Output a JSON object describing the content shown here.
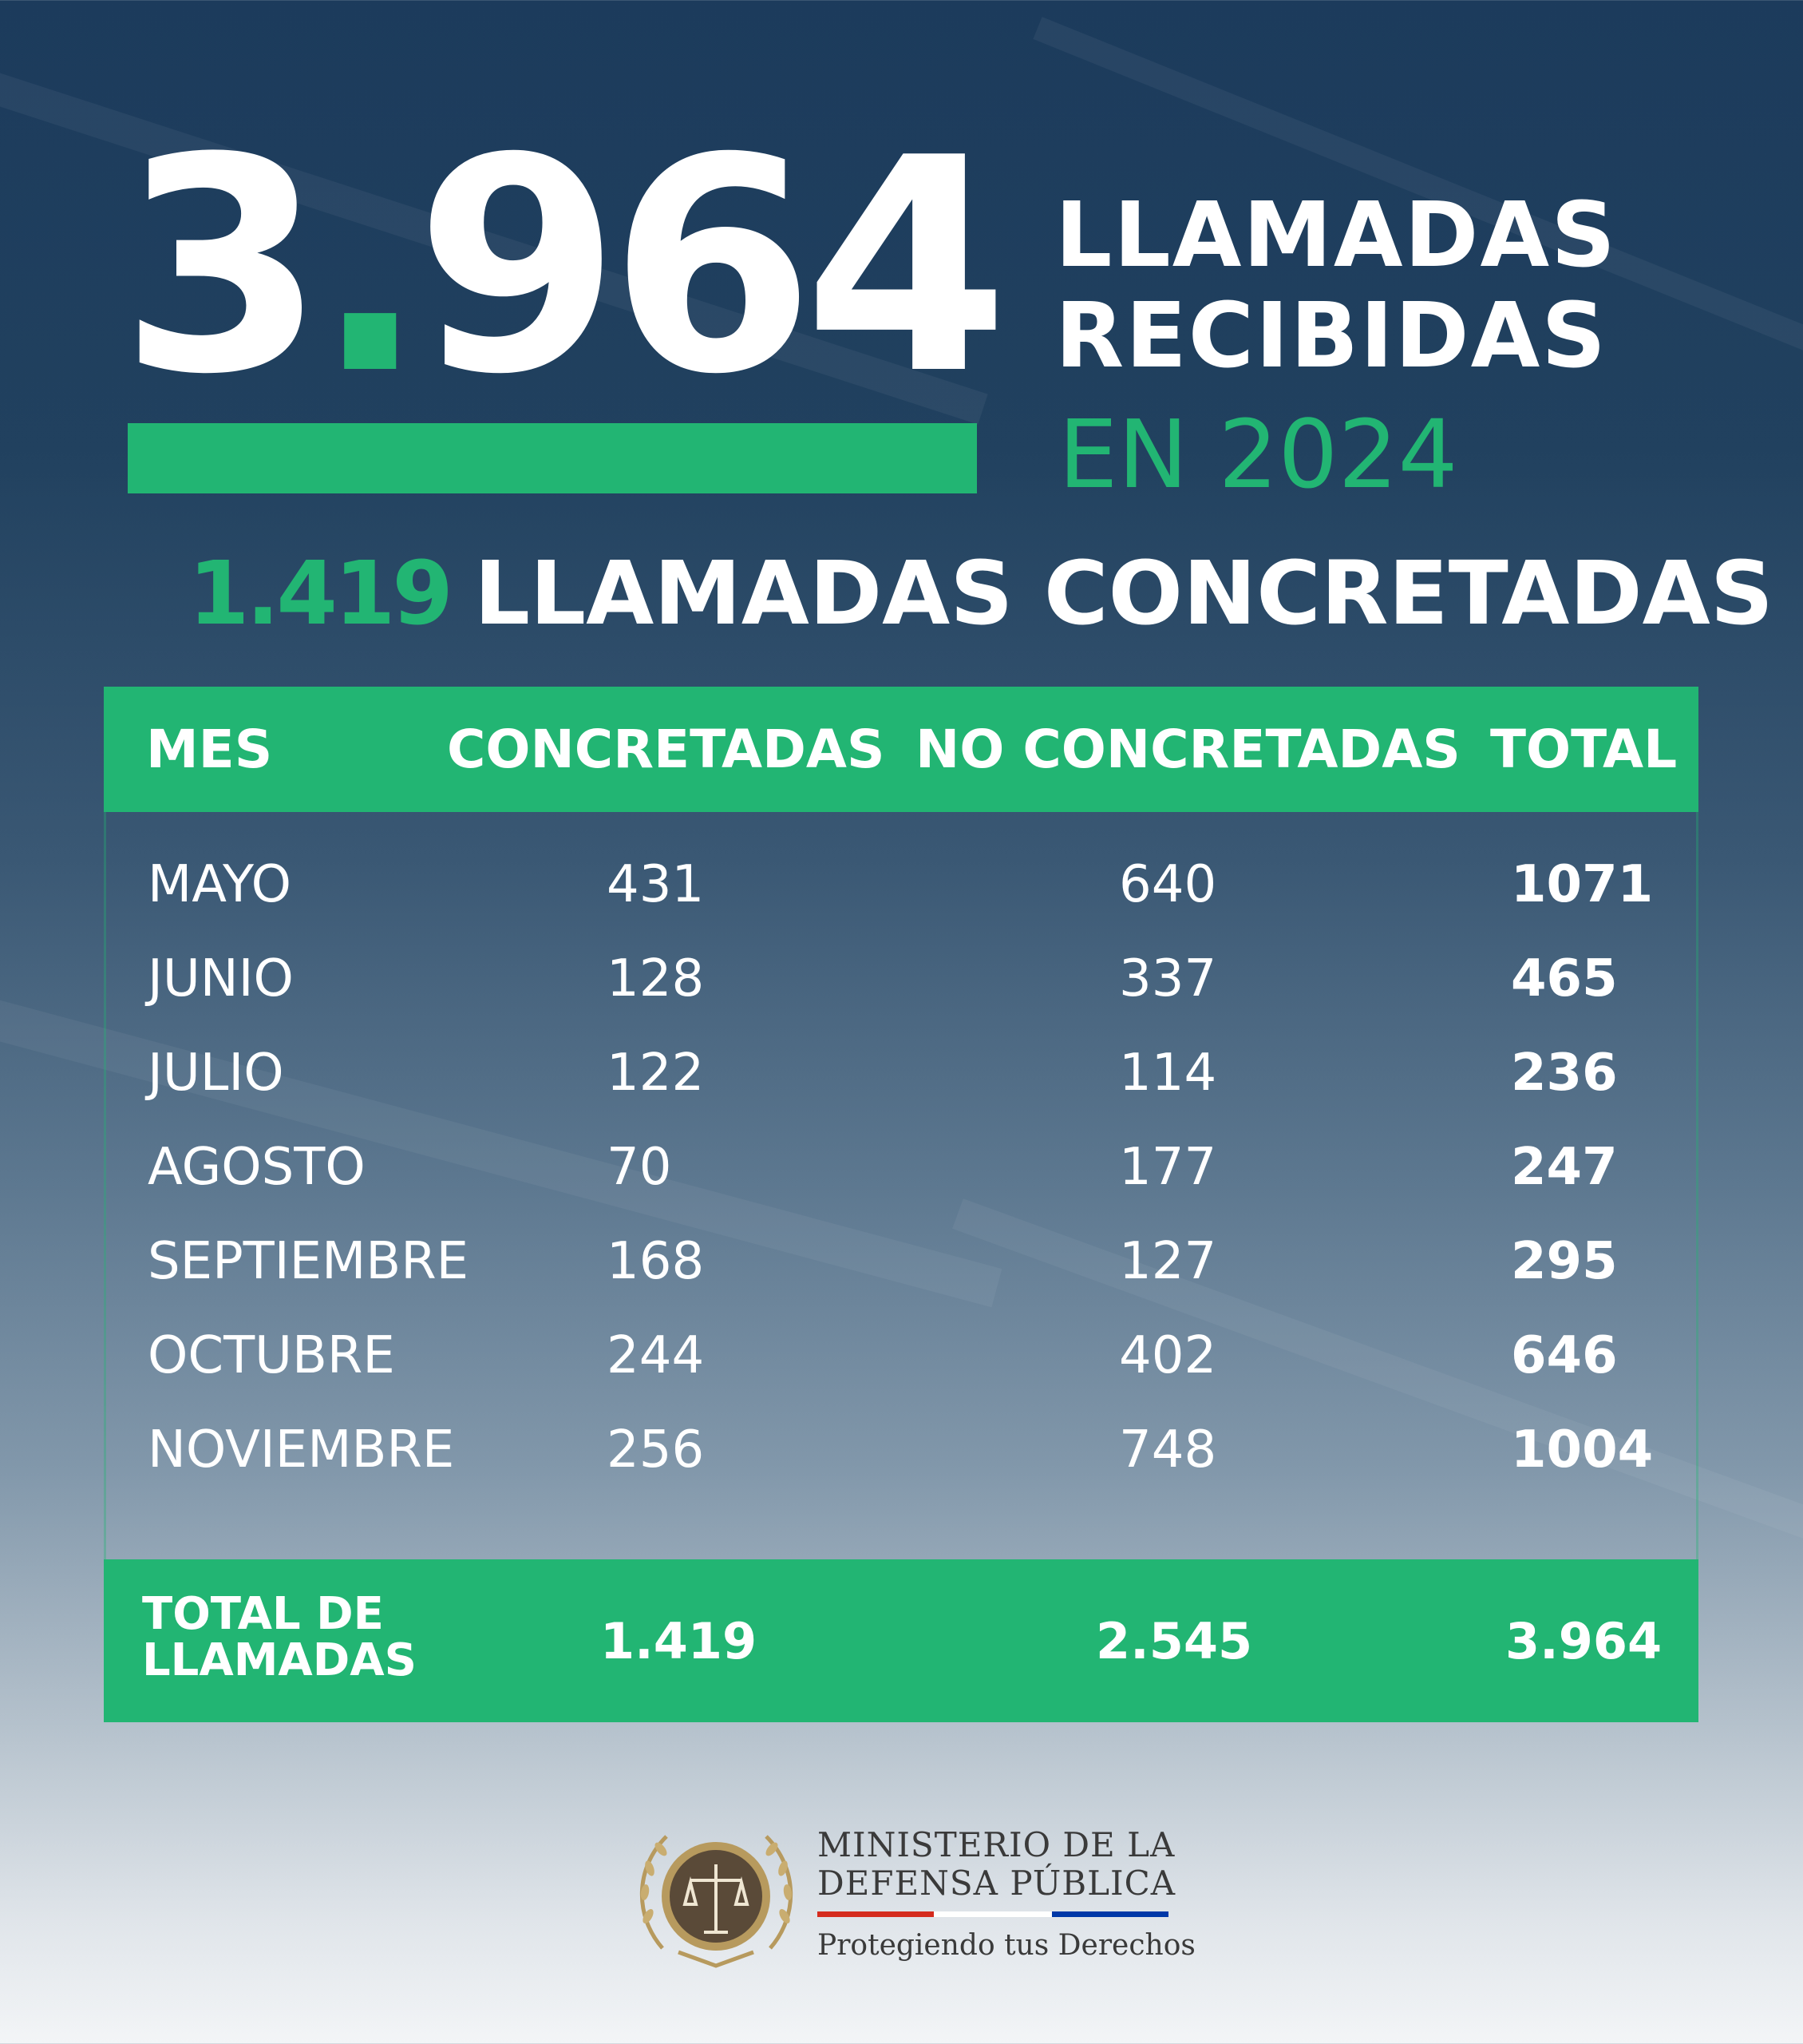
{
  "hero": {
    "big_number_a": "3",
    "big_number_dot": ".",
    "big_number_b": "964",
    "headline_line1": "LLAMADAS",
    "headline_line2": "RECIBIDAS",
    "headline_year": "EN 2024"
  },
  "subhead": {
    "count": "1.419",
    "label": "LLAMADAS CONCRETADAS"
  },
  "table": {
    "headers": [
      "MES",
      "CONCRETADAS",
      "NO CONCRETADAS",
      "TOTAL"
    ],
    "rows": [
      {
        "mes": "MAYO",
        "concretadas": "431",
        "no_concretadas": "640",
        "total": "1071"
      },
      {
        "mes": "JUNIO",
        "concretadas": "128",
        "no_concretadas": "337",
        "total": "465"
      },
      {
        "mes": "JULIO",
        "concretadas": "122",
        "no_concretadas": "114",
        "total": "236"
      },
      {
        "mes": "AGOSTO",
        "concretadas": "70",
        "no_concretadas": "177",
        "total": "247"
      },
      {
        "mes": "SEPTIEMBRE",
        "concretadas": "168",
        "no_concretadas": "127",
        "total": "295"
      },
      {
        "mes": "OCTUBRE",
        "concretadas": "244",
        "no_concretadas": "402",
        "total": "646"
      },
      {
        "mes": "NOVIEMBRE",
        "concretadas": "256",
        "no_concretadas": "748",
        "total": "1004"
      }
    ],
    "footer": {
      "label_line1": "TOTAL DE",
      "label_line2": "LLAMADAS",
      "concretadas": "1.419",
      "no_concretadas": "2.545",
      "total": "3.964"
    }
  },
  "organization": {
    "name_line1": "MINISTERIO DE LA",
    "name_line2": "DEFENSA PÚBLICA",
    "tagline": "Protegiendo tus Derechos",
    "logo_icon": "scales-of-justice-seal-icon"
  },
  "colors": {
    "accent_green": "#22b573",
    "background_top": "#1c3b5c",
    "background_bottom": "#f3f5f7",
    "flag_red": "#d52b1e",
    "flag_white": "#ffffff",
    "flag_blue": "#0038a8"
  }
}
